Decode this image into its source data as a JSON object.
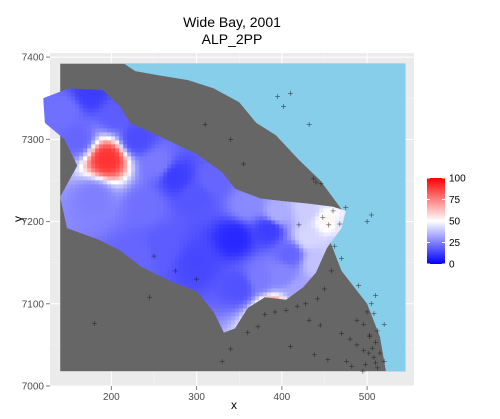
{
  "chart_data": {
    "type": "heatmap",
    "title": "Wide Bay, 2001",
    "subtitle": "ALP_2PP",
    "xlabel": "x",
    "ylabel": "y",
    "xlim": [
      128,
      555
    ],
    "ylim": [
      7000,
      7405
    ],
    "x_ticks": [
      "200",
      "300",
      "400",
      "500"
    ],
    "y_ticks": [
      "7000",
      "7100",
      "7200",
      "7300",
      "7400"
    ],
    "grid": true,
    "legend": {
      "placement": "right",
      "scale_min": 0,
      "scale_max": 100,
      "ticks": [
        "100",
        "75",
        "50",
        "25",
        "0"
      ],
      "colors": {
        "low": "#0000ff",
        "mid": "#ffffff",
        "high": "#ff0000"
      }
    },
    "colors": {
      "panel_background": "#ebebeb",
      "land": "#666666",
      "sea": "#87ceeb",
      "booth_marker": "#1a1a1a"
    },
    "land_extent": {
      "x": [
        140,
        545
      ],
      "y": [
        7018,
        7392
      ]
    },
    "sea_region": [
      [
        215,
        7392
      ],
      [
        545,
        7392
      ],
      [
        545,
        7018
      ],
      [
        522,
        7018
      ],
      [
        515,
        7060
      ],
      [
        500,
        7100
      ],
      [
        470,
        7140
      ],
      [
        455,
        7180
      ],
      [
        470,
        7215
      ],
      [
        445,
        7250
      ],
      [
        420,
        7275
      ],
      [
        393,
        7305
      ],
      [
        370,
        7320
      ],
      [
        350,
        7345
      ],
      [
        320,
        7362
      ],
      [
        290,
        7372
      ],
      [
        255,
        7378
      ],
      [
        228,
        7383
      ]
    ],
    "region_outline": [
      [
        120,
        7350
      ],
      [
        150,
        7362
      ],
      [
        190,
        7360
      ],
      [
        210,
        7340
      ],
      [
        222,
        7320
      ],
      [
        268,
        7298
      ],
      [
        300,
        7282
      ],
      [
        330,
        7260
      ],
      [
        345,
        7240
      ],
      [
        375,
        7228
      ],
      [
        400,
        7225
      ],
      [
        430,
        7222
      ],
      [
        460,
        7218
      ],
      [
        475,
        7213
      ],
      [
        470,
        7192
      ],
      [
        453,
        7168
      ],
      [
        440,
        7138
      ],
      [
        425,
        7120
      ],
      [
        405,
        7105
      ],
      [
        380,
        7108
      ],
      [
        360,
        7095
      ],
      [
        345,
        7070
      ],
      [
        332,
        7065
      ],
      [
        320,
        7090
      ],
      [
        300,
        7115
      ],
      [
        268,
        7128
      ],
      [
        235,
        7145
      ],
      [
        210,
        7165
      ],
      [
        185,
        7178
      ],
      [
        148,
        7192
      ],
      [
        140,
        7230
      ],
      [
        160,
        7268
      ],
      [
        145,
        7300
      ],
      [
        122,
        7320
      ]
    ],
    "vote_points": [
      {
        "x": 145,
        "y": 7335,
        "v": 22
      },
      {
        "x": 175,
        "y": 7355,
        "v": 12
      },
      {
        "x": 205,
        "y": 7330,
        "v": 18
      },
      {
        "x": 160,
        "y": 7300,
        "v": 20
      },
      {
        "x": 195,
        "y": 7276,
        "v": 90
      },
      {
        "x": 230,
        "y": 7300,
        "v": 15
      },
      {
        "x": 255,
        "y": 7270,
        "v": 24
      },
      {
        "x": 180,
        "y": 7230,
        "v": 25
      },
      {
        "x": 240,
        "y": 7220,
        "v": 22
      },
      {
        "x": 275,
        "y": 7255,
        "v": 12
      },
      {
        "x": 300,
        "y": 7230,
        "v": 17
      },
      {
        "x": 320,
        "y": 7250,
        "v": 20
      },
      {
        "x": 360,
        "y": 7220,
        "v": 27
      },
      {
        "x": 345,
        "y": 7180,
        "v": 8
      },
      {
        "x": 300,
        "y": 7150,
        "v": 14
      },
      {
        "x": 260,
        "y": 7170,
        "v": 18
      },
      {
        "x": 230,
        "y": 7160,
        "v": 20
      },
      {
        "x": 385,
        "y": 7190,
        "v": 12
      },
      {
        "x": 410,
        "y": 7160,
        "v": 20
      },
      {
        "x": 350,
        "y": 7120,
        "v": 16
      },
      {
        "x": 375,
        "y": 7130,
        "v": 24
      },
      {
        "x": 390,
        "y": 7090,
        "v": 80
      },
      {
        "x": 420,
        "y": 7115,
        "v": 32
      },
      {
        "x": 430,
        "y": 7180,
        "v": 42
      },
      {
        "x": 440,
        "y": 7150,
        "v": 38
      },
      {
        "x": 455,
        "y": 7200,
        "v": 52
      },
      {
        "x": 470,
        "y": 7195,
        "v": 45
      },
      {
        "x": 450,
        "y": 7235,
        "v": 44
      },
      {
        "x": 465,
        "y": 7170,
        "v": 40
      },
      {
        "x": 395,
        "y": 7210,
        "v": 34
      },
      {
        "x": 430,
        "y": 7215,
        "v": 40
      },
      {
        "x": 400,
        "y": 7135,
        "v": 26
      }
    ],
    "booth_markers": [
      [
        395,
        7352
      ],
      [
        402,
        7340
      ],
      [
        410,
        7356
      ],
      [
        432,
        7318
      ],
      [
        440,
        7248
      ],
      [
        446,
        7246
      ],
      [
        437,
        7252
      ],
      [
        455,
        7196
      ],
      [
        468,
        7197
      ],
      [
        462,
        7170
      ],
      [
        470,
        7155
      ],
      [
        458,
        7140
      ],
      [
        450,
        7118
      ],
      [
        442,
        7106
      ],
      [
        428,
        7100
      ],
      [
        418,
        7097
      ],
      [
        405,
        7092
      ],
      [
        392,
        7090
      ],
      [
        380,
        7087
      ],
      [
        432,
        7080
      ],
      [
        445,
        7074
      ],
      [
        470,
        7064
      ],
      [
        480,
        7057
      ],
      [
        488,
        7050
      ],
      [
        496,
        7043
      ],
      [
        502,
        7040
      ],
      [
        508,
        7035
      ],
      [
        506,
        7046
      ],
      [
        510,
        7053
      ],
      [
        503,
        7062
      ],
      [
        512,
        7067
      ],
      [
        496,
        7075
      ],
      [
        488,
        7080
      ],
      [
        500,
        7090
      ],
      [
        505,
        7100
      ],
      [
        510,
        7110
      ],
      [
        515,
        7040
      ],
      [
        520,
        7030
      ],
      [
        510,
        7028
      ],
      [
        498,
        7026
      ],
      [
        360,
        7065
      ],
      [
        372,
        7072
      ],
      [
        340,
        7045
      ],
      [
        330,
        7030
      ],
      [
        410,
        7048
      ],
      [
        438,
        7038
      ],
      [
        454,
        7032
      ],
      [
        476,
        7030
      ],
      [
        300,
        7130
      ],
      [
        250,
        7158
      ],
      [
        245,
        7108
      ],
      [
        180,
        7076
      ],
      [
        275,
        7140
      ],
      [
        310,
        7318
      ],
      [
        340,
        7300
      ],
      [
        355,
        7270
      ],
      [
        460,
        7213
      ],
      [
        475,
        7217
      ],
      [
        448,
        7205
      ],
      [
        420,
        7196
      ],
      [
        500,
        7200
      ],
      [
        505,
        7208
      ],
      [
        490,
        7122
      ],
      [
        503,
        7060
      ],
      [
        512,
        7022
      ],
      [
        495,
        7018
      ],
      [
        482,
        7024
      ],
      [
        520,
        7075
      ],
      [
        508,
        7088
      ]
    ]
  }
}
